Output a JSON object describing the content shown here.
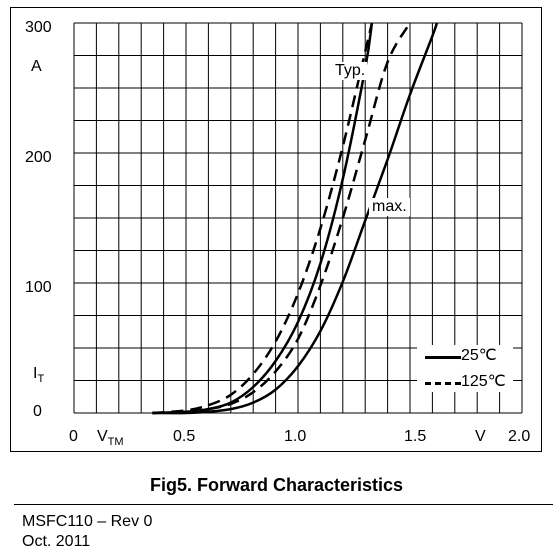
{
  "chart_data": {
    "type": "line",
    "x_unit": "V",
    "y_unit": "A",
    "xlim": [
      0,
      2.0
    ],
    "ylim": [
      0,
      300
    ],
    "x_ticks": [
      "0.5",
      "1.0",
      "1.5",
      "2.0"
    ],
    "y_ticks": [
      "100",
      "200",
      "300"
    ],
    "zero_label_x": "0",
    "zero_label_y": "0",
    "xlabel_main": "V",
    "xlabel_sub": "TM",
    "ylabel_main": "I",
    "ylabel_sub": "T",
    "grid": true,
    "legend_position": "bottom-right",
    "legend": [
      {
        "label": "25℃",
        "style": "solid"
      },
      {
        "label": "125℃",
        "style": "dashed"
      }
    ],
    "annotations": {
      "typ": "Typ.",
      "max": "max."
    },
    "series": [
      {
        "curve": "Typ.",
        "style": "dashed",
        "points": [
          [
            0.35,
            0
          ],
          [
            0.5,
            2
          ],
          [
            0.6,
            6
          ],
          [
            0.7,
            14
          ],
          [
            0.8,
            30
          ],
          [
            0.9,
            55
          ],
          [
            1.0,
            92
          ],
          [
            1.1,
            142
          ],
          [
            1.2,
            205
          ],
          [
            1.3,
            278
          ],
          [
            1.33,
            300
          ]
        ]
      },
      {
        "curve": "Typ.",
        "style": "solid",
        "points": [
          [
            0.35,
            0
          ],
          [
            0.5,
            1
          ],
          [
            0.6,
            3
          ],
          [
            0.7,
            8
          ],
          [
            0.8,
            20
          ],
          [
            0.9,
            40
          ],
          [
            1.0,
            70
          ],
          [
            1.1,
            115
          ],
          [
            1.2,
            180
          ],
          [
            1.3,
            265
          ],
          [
            1.33,
            300
          ]
        ]
      },
      {
        "curve": "max.",
        "style": "dashed",
        "points": [
          [
            0.35,
            0
          ],
          [
            0.5,
            1
          ],
          [
            0.6,
            3
          ],
          [
            0.7,
            7
          ],
          [
            0.8,
            16
          ],
          [
            0.9,
            32
          ],
          [
            1.0,
            57
          ],
          [
            1.1,
            98
          ],
          [
            1.2,
            150
          ],
          [
            1.3,
            210
          ],
          [
            1.4,
            270
          ],
          [
            1.5,
            300
          ]
        ]
      },
      {
        "curve": "max.",
        "style": "solid",
        "points": [
          [
            0.35,
            0
          ],
          [
            0.5,
            0
          ],
          [
            0.6,
            1
          ],
          [
            0.7,
            3
          ],
          [
            0.8,
            8
          ],
          [
            0.9,
            18
          ],
          [
            1.0,
            36
          ],
          [
            1.1,
            63
          ],
          [
            1.2,
            101
          ],
          [
            1.3,
            148
          ],
          [
            1.4,
            195
          ],
          [
            1.5,
            245
          ],
          [
            1.6,
            290
          ],
          [
            1.62,
            300
          ]
        ]
      }
    ]
  },
  "caption": "Fig5. Forward Characteristics",
  "footer": {
    "doc_id": "MSFC110 – Rev 0",
    "date": "Oct. 2011"
  }
}
